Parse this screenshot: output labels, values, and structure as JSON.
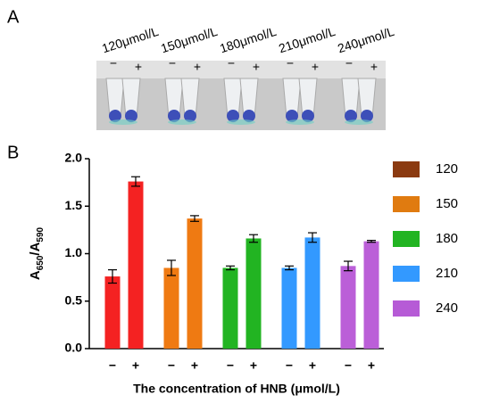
{
  "panel_a": {
    "label": "A",
    "concentrations": [
      "120μmol/L",
      "150μmol/L",
      "180μmol/L",
      "210μmol/L",
      "240μmol/L"
    ],
    "signs": [
      "−",
      "+"
    ]
  },
  "chart_data": {
    "type": "bar",
    "panel_label": "B",
    "ylabel_parts": [
      "A",
      "650",
      "/A",
      "590"
    ],
    "xlabel": "The concentration of HNB (μmol/L)",
    "subcategories": [
      "−",
      "+"
    ],
    "series": [
      {
        "name": "120",
        "color": "#f42222",
        "legend_color": "#8b3a10",
        "values": [
          0.76,
          1.76
        ],
        "errors": [
          0.07,
          0.05
        ]
      },
      {
        "name": "150",
        "color": "#ef7a12",
        "legend_color": "#e07b10",
        "values": [
          0.85,
          1.37
        ],
        "errors": [
          0.08,
          0.03
        ]
      },
      {
        "name": "180",
        "color": "#22b422",
        "legend_color": "#22b422",
        "values": [
          0.85,
          1.16
        ],
        "errors": [
          0.02,
          0.04
        ]
      },
      {
        "name": "210",
        "color": "#3399ff",
        "legend_color": "#3399ff",
        "values": [
          0.85,
          1.17
        ],
        "errors": [
          0.02,
          0.05
        ]
      },
      {
        "name": "240",
        "color": "#bb5fd8",
        "legend_color": "#b65bd6",
        "values": [
          0.87,
          1.13
        ],
        "errors": [
          0.05,
          0.01
        ]
      }
    ],
    "ylim": [
      0,
      2
    ],
    "yticks": [
      {
        "value": 0,
        "label": "0.0"
      },
      {
        "value": 0.5,
        "label": "0.5"
      },
      {
        "value": 1,
        "label": "1.0"
      },
      {
        "value": 1.5,
        "label": "1.5"
      },
      {
        "value": 2,
        "label": "2.0"
      }
    ],
    "legend": "right"
  }
}
